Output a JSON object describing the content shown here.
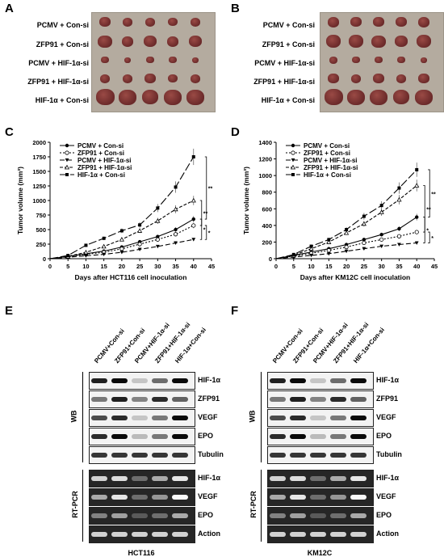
{
  "panels": {
    "A": "A",
    "B": "B",
    "C": "C",
    "D": "D",
    "E": "E",
    "F": "F"
  },
  "photo_rows": [
    "PCMV + Con-si",
    "ZFP91 + Con-si",
    "PCMV + HIF-1α-si",
    "ZFP91 + HIF-1α-si",
    "HIF-1α + Con-si"
  ],
  "chart_data": [
    {
      "type": "line",
      "xlabel": "Days after HCT116 cell inoculation",
      "ylabel": "Tumor volume (mm³)",
      "xlim": [
        0,
        45
      ],
      "ylim": [
        0,
        2000
      ],
      "xticks": [
        0,
        5,
        10,
        15,
        20,
        25,
        30,
        35,
        40,
        45
      ],
      "yticks": [
        0,
        250,
        500,
        750,
        1000,
        1250,
        1500,
        1750,
        2000
      ],
      "x": [
        5,
        10,
        15,
        20,
        25,
        30,
        35,
        40
      ],
      "legend": "top-left",
      "significance": [
        "**",
        "**",
        "*",
        "*"
      ],
      "series": [
        {
          "name": "PCMV + Con-si",
          "values": [
            40,
            85,
            130,
            200,
            290,
            380,
            500,
            680
          ]
        },
        {
          "name": "ZFP91 + Con-si",
          "values": [
            35,
            75,
            110,
            170,
            250,
            330,
            420,
            570
          ]
        },
        {
          "name": "PCMV + HIF-1α-si",
          "values": [
            25,
            50,
            75,
            110,
            160,
            210,
            270,
            330
          ]
        },
        {
          "name": "ZFP91 + HIF-1α-si",
          "values": [
            40,
            110,
            210,
            330,
            480,
            650,
            850,
            1000
          ]
        },
        {
          "name": "HIF-1α + Con-si",
          "values": [
            55,
            230,
            350,
            480,
            580,
            870,
            1230,
            1750
          ]
        }
      ]
    },
    {
      "type": "line",
      "xlabel": "Days after KM12C cell inoculation",
      "ylabel": "Tumor volume (mm³)",
      "xlim": [
        0,
        45
      ],
      "ylim": [
        0,
        1400
      ],
      "xticks": [
        0,
        5,
        10,
        15,
        20,
        25,
        30,
        35,
        40,
        45
      ],
      "yticks": [
        0,
        200,
        400,
        600,
        800,
        1000,
        1200,
        1400
      ],
      "x": [
        5,
        10,
        15,
        20,
        25,
        30,
        35,
        40
      ],
      "legend": "top-left",
      "significance": [
        "**",
        "**",
        "*",
        "*"
      ],
      "series": [
        {
          "name": "PCMV + Con-si",
          "values": [
            40,
            80,
            120,
            170,
            230,
            290,
            360,
            500
          ]
        },
        {
          "name": "ZFP91 + Con-si",
          "values": [
            30,
            65,
            100,
            140,
            190,
            230,
            270,
            320
          ]
        },
        {
          "name": "PCMV + HIF-1α-si",
          "values": [
            20,
            40,
            60,
            90,
            120,
            150,
            170,
            190
          ]
        },
        {
          "name": "ZFP91 + HIF-1α-si",
          "values": [
            40,
            120,
            200,
            310,
            420,
            560,
            710,
            880
          ]
        },
        {
          "name": "HIF-1α + Con-si",
          "values": [
            50,
            150,
            230,
            350,
            510,
            640,
            850,
            1070
          ]
        }
      ]
    }
  ],
  "blots": {
    "lanes": [
      "PCMV+Con-si",
      "ZFP91+Con-si",
      "PCMV+HIF-1α-si",
      "ZFP91+HIF-1α-si",
      "HIF-1α+Con-si"
    ],
    "wb_label": "WB",
    "pcr_label": "RT-PCR",
    "wb_rows": [
      "HIF-1α",
      "ZFP91",
      "VEGF",
      "EPO",
      "Tubulin"
    ],
    "pcr_rows": [
      "HIF-1α",
      "VEGF",
      "EPO",
      "Action"
    ],
    "E": {
      "cell_line": "HCT116"
    },
    "F": {
      "cell_line": "KM12C"
    }
  }
}
